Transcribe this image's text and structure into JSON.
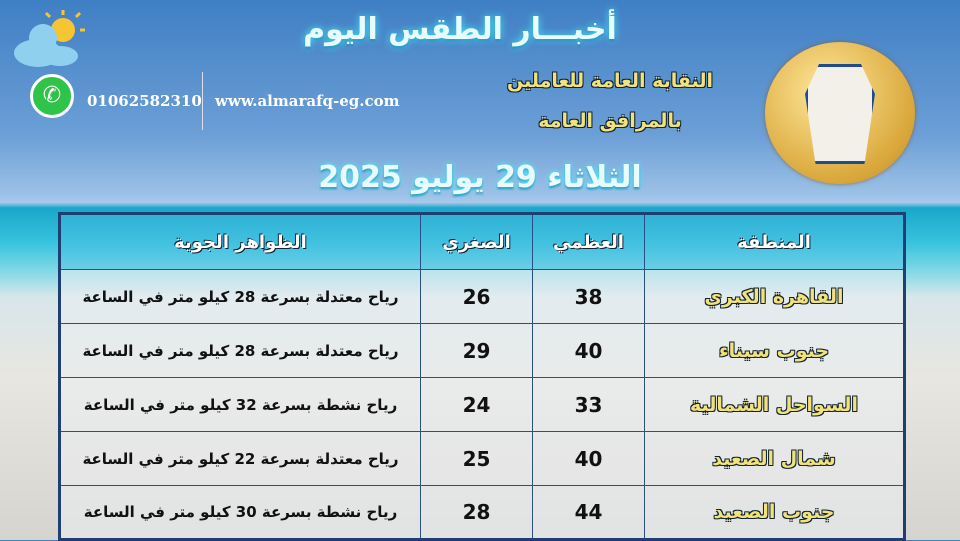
{
  "header": {
    "title": "أخبـــار الطقس اليوم",
    "union_line1": "النقابة العامة للعاملين",
    "union_line2": "بالمرافق العامة",
    "date": "الثلاثاء 29 يوليو 2025",
    "phone": "01062582310",
    "website": "www.almarafq-eg.com"
  },
  "icons": {
    "weather": "sun-cloud-icon",
    "whatsapp": "whatsapp-icon",
    "logo": "union-logo"
  },
  "table": {
    "headers": [
      "المنطقة",
      "العظمي",
      "الصغري",
      "الظواهر الجوية"
    ],
    "rows": [
      [
        "القاهرة الكبري",
        "38",
        "26",
        "رياح معتدلة بسرعة 28 كيلو متر في الساعة"
      ],
      [
        "جنوب سيناء",
        "40",
        "29",
        "رياح معتدلة بسرعة 28 كيلو متر في الساعة"
      ],
      [
        "السواحل الشمالية",
        "33",
        "24",
        "رياح نشطة بسرعة 32 كيلو متر في الساعة"
      ],
      [
        "شمال الصعيد",
        "40",
        "25",
        "رياح معتدلة بسرعة 22 كيلو متر في الساعة"
      ],
      [
        "جنوب الصعيد",
        "44",
        "28",
        "رياح نشطة بسرعة 30 كيلو متر في الساعة"
      ]
    ]
  },
  "colors": {
    "region_text": "#f2e27a",
    "border": "#2a4f86",
    "whatsapp": "#2fc34a"
  }
}
